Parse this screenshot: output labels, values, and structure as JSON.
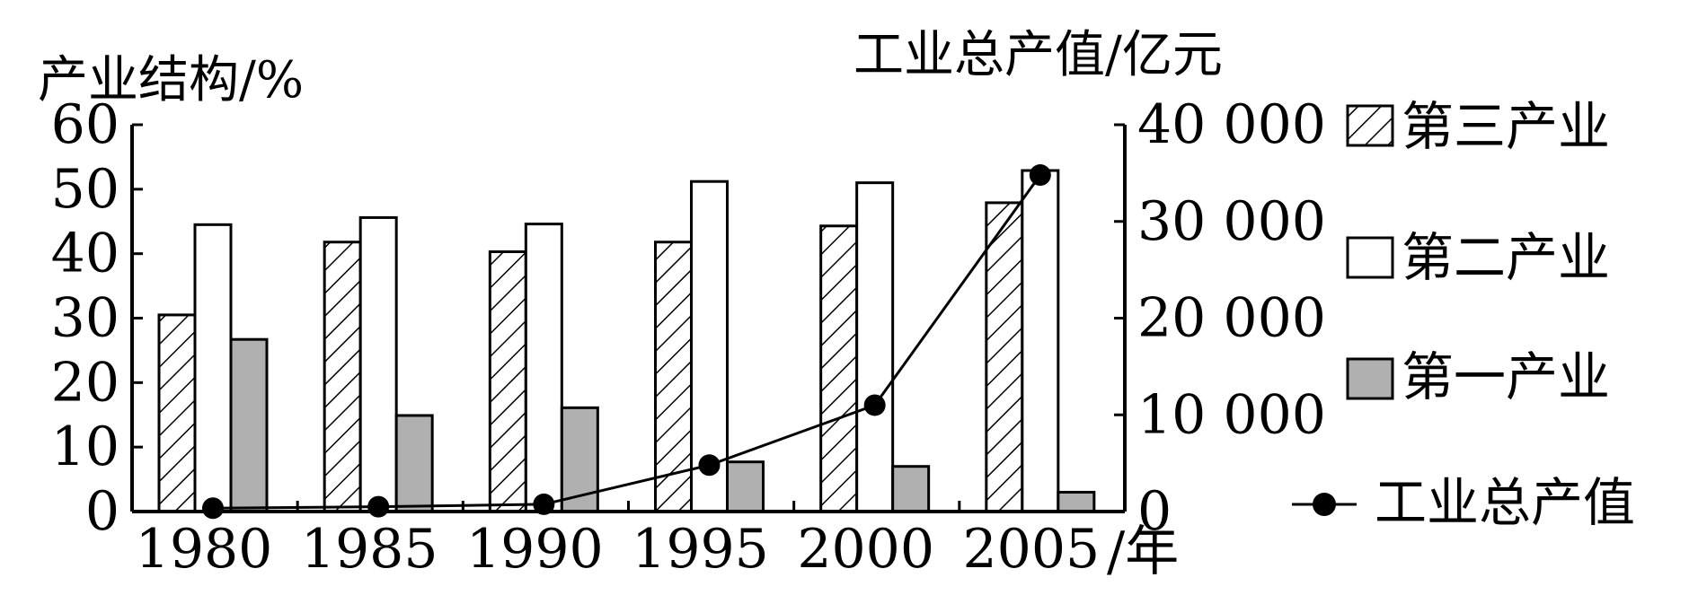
{
  "chart_data": {
    "type": "bar",
    "categories": [
      "1980",
      "1985",
      "1990",
      "1995",
      "2000",
      "2005"
    ],
    "x_unit_label": "/年",
    "y_left": {
      "label": "产业结构/%",
      "ylim": [
        0,
        60
      ],
      "ticks": [
        "0",
        "10",
        "20",
        "30",
        "40",
        "50",
        "60"
      ]
    },
    "y_right": {
      "label": "工业总产值/亿元",
      "ylim": [
        0,
        40000
      ],
      "ticks": [
        "0",
        "10 000",
        "20 000",
        "30 000",
        "40 000"
      ]
    },
    "series": [
      {
        "name": "第三产业",
        "kind": "bar",
        "pattern": "hatch",
        "axis": "left",
        "values": [
          30.5,
          41.8,
          40.3,
          41.8,
          44.3,
          47.9
        ]
      },
      {
        "name": "第二产业",
        "kind": "bar",
        "pattern": "white",
        "axis": "left",
        "values": [
          44.5,
          45.6,
          44.6,
          51.2,
          51.0,
          52.9
        ]
      },
      {
        "name": "第一产业",
        "kind": "bar",
        "pattern": "gray",
        "axis": "left",
        "color": "#b0b0b0",
        "values": [
          26.7,
          14.9,
          16.1,
          7.7,
          7.0,
          3.0
        ]
      },
      {
        "name": "工业总产值",
        "kind": "line",
        "axis": "right",
        "color": "#000000",
        "values": [
          350,
          500,
          750,
          4800,
          11000,
          34800
        ]
      }
    ],
    "legend": {
      "position": "right",
      "items": [
        "第三产业",
        "第二产业",
        "第一产业",
        "工业总产值"
      ]
    },
    "grid": false
  }
}
